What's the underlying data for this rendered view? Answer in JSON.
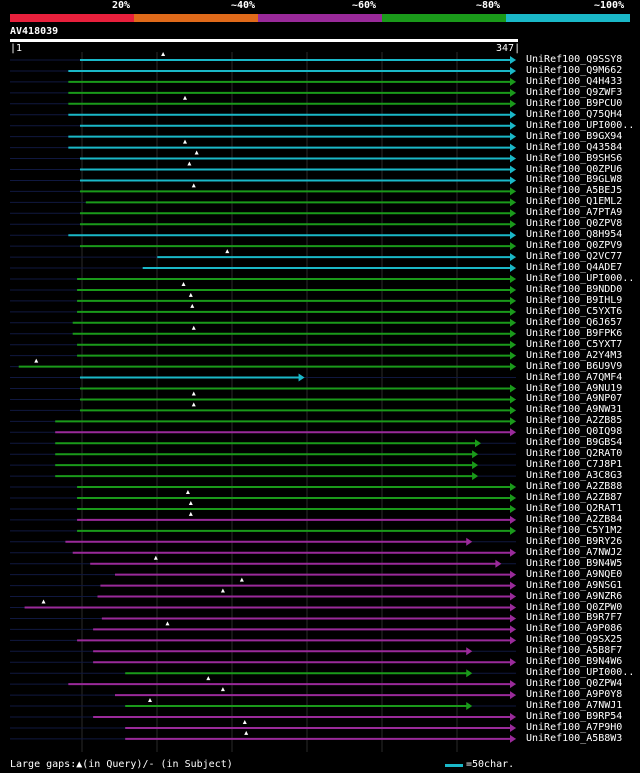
{
  "legend": {
    "labels": [
      "20%",
      "~40%",
      "~60%",
      "~80%",
      "~100%"
    ],
    "colors": [
      "#e8203c",
      "#e06a1a",
      "#9a2a9a",
      "#1a9a1a",
      "#1ab8c8"
    ]
  },
  "query": {
    "id": "AV418039",
    "start": "1",
    "end": "347",
    "length": 347
  },
  "hits": [
    {
      "name": "UniRef100_Q9SSY8",
      "start": 48,
      "end": 347,
      "color": "cyan",
      "gap": 105,
      "trunc": false
    },
    {
      "name": "UniRef100_Q9M662",
      "start": 40,
      "end": 347,
      "color": "cyan",
      "gap": 0,
      "trunc": false
    },
    {
      "name": "UniRef100_Q4H433",
      "start": 40,
      "end": 347,
      "color": "green",
      "gap": 0,
      "trunc": false
    },
    {
      "name": "UniRef100_Q9ZWF3",
      "start": 40,
      "end": 347,
      "color": "green",
      "gap": 0,
      "trunc": false
    },
    {
      "name": "UniRef100_B9PCU0",
      "start": 40,
      "end": 347,
      "color": "green",
      "gap": 120,
      "trunc": false
    },
    {
      "name": "UniRef100_Q75QH4",
      "start": 40,
      "end": 347,
      "color": "cyan",
      "gap": 0,
      "trunc": false
    },
    {
      "name": "UniRef100_UPI000..",
      "start": 48,
      "end": 347,
      "color": "cyan",
      "gap": 0,
      "trunc": true
    },
    {
      "name": "UniRef100_B9GX94",
      "start": 40,
      "end": 347,
      "color": "cyan",
      "gap": 0,
      "trunc": false
    },
    {
      "name": "UniRef100_Q43584",
      "start": 40,
      "end": 347,
      "color": "cyan",
      "gap": 120,
      "trunc": false
    },
    {
      "name": "UniRef100_B9SHS6",
      "start": 48,
      "end": 347,
      "color": "cyan",
      "gap": 128,
      "trunc": false
    },
    {
      "name": "UniRef100_Q0ZPU6",
      "start": 48,
      "end": 347,
      "color": "cyan",
      "gap": 123,
      "trunc": false
    },
    {
      "name": "UniRef100_B9GLW8",
      "start": 48,
      "end": 347,
      "color": "cyan",
      "gap": 0,
      "trunc": false
    },
    {
      "name": "UniRef100_A5BEJ5",
      "start": 48,
      "end": 347,
      "color": "green",
      "gap": 126,
      "trunc": false
    },
    {
      "name": "UniRef100_Q1EML2",
      "start": 52,
      "end": 347,
      "color": "green",
      "gap": 0,
      "trunc": false
    },
    {
      "name": "UniRef100_A7PTA9",
      "start": 48,
      "end": 347,
      "color": "green",
      "gap": 0,
      "trunc": false
    },
    {
      "name": "UniRef100_Q0ZPV8",
      "start": 48,
      "end": 347,
      "color": "green",
      "gap": 0,
      "trunc": false
    },
    {
      "name": "UniRef100_Q8H954",
      "start": 40,
      "end": 347,
      "color": "cyan",
      "gap": 0,
      "trunc": false
    },
    {
      "name": "UniRef100_Q0ZPV9",
      "start": 48,
      "end": 347,
      "color": "green",
      "gap": 0,
      "trunc": false
    },
    {
      "name": "UniRef100_Q2VC77",
      "start": 101,
      "end": 347,
      "color": "cyan",
      "gap": 149,
      "trunc": false
    },
    {
      "name": "UniRef100_Q4ADE7",
      "start": 91,
      "end": 347,
      "color": "cyan",
      "gap": 0,
      "trunc": false
    },
    {
      "name": "UniRef100_UPI000..",
      "start": 46,
      "end": 347,
      "color": "green",
      "gap": 0,
      "trunc": true
    },
    {
      "name": "UniRef100_B9NDD0",
      "start": 46,
      "end": 347,
      "color": "green",
      "gap": 119,
      "trunc": false
    },
    {
      "name": "UniRef100_B9IHL9",
      "start": 46,
      "end": 347,
      "color": "green",
      "gap": 124,
      "trunc": false
    },
    {
      "name": "UniRef100_C5YXT6",
      "start": 46,
      "end": 347,
      "color": "green",
      "gap": 125,
      "trunc": false
    },
    {
      "name": "UniRef100_Q6J657",
      "start": 43,
      "end": 347,
      "color": "green",
      "gap": 0,
      "trunc": false
    },
    {
      "name": "UniRef100_B9FPK6",
      "start": 43,
      "end": 347,
      "color": "green",
      "gap": 126,
      "trunc": false
    },
    {
      "name": "UniRef100_C5YXT7",
      "start": 46,
      "end": 347,
      "color": "green",
      "gap": 0,
      "trunc": false
    },
    {
      "name": "UniRef100_A2Y4M3",
      "start": 46,
      "end": 347,
      "color": "green",
      "gap": 0,
      "trunc": false
    },
    {
      "name": "UniRef100_B6U9V9",
      "start": 6,
      "end": 347,
      "color": "green",
      "gap": 18,
      "trunc": false
    },
    {
      "name": "UniRef100_A7QMF4",
      "start": 48,
      "end": 202,
      "color": "cyan",
      "gap": 0,
      "trunc": false
    },
    {
      "name": "UniRef100_A9NU19",
      "start": 48,
      "end": 347,
      "color": "green",
      "gap": 0,
      "trunc": false
    },
    {
      "name": "UniRef100_A9NP07",
      "start": 48,
      "end": 347,
      "color": "green",
      "gap": 126,
      "trunc": false
    },
    {
      "name": "UniRef100_A9NW31",
      "start": 48,
      "end": 347,
      "color": "green",
      "gap": 126,
      "trunc": false
    },
    {
      "name": "UniRef100_A2ZB85",
      "start": 31,
      "end": 347,
      "color": "green",
      "gap": 0,
      "trunc": false
    },
    {
      "name": "UniRef100_Q0IQ98",
      "start": 31,
      "end": 347,
      "color": "purple",
      "gap": 0,
      "trunc": false
    },
    {
      "name": "UniRef100_B9GBS4",
      "start": 31,
      "end": 323,
      "color": "green",
      "gap": 0,
      "trunc": false
    },
    {
      "name": "UniRef100_Q2RAT0",
      "start": 31,
      "end": 321,
      "color": "green",
      "gap": 0,
      "trunc": false
    },
    {
      "name": "UniRef100_C7J8P1",
      "start": 31,
      "end": 321,
      "color": "green",
      "gap": 0,
      "trunc": false
    },
    {
      "name": "UniRef100_A3C8G3",
      "start": 31,
      "end": 321,
      "color": "green",
      "gap": 0,
      "trunc": false
    },
    {
      "name": "UniRef100_A2ZB88",
      "start": 46,
      "end": 347,
      "color": "green",
      "gap": 0,
      "trunc": false
    },
    {
      "name": "UniRef100_A2ZB87",
      "start": 46,
      "end": 347,
      "color": "green",
      "gap": 122,
      "trunc": false
    },
    {
      "name": "UniRef100_Q2RAT1",
      "start": 46,
      "end": 347,
      "color": "green",
      "gap": 124,
      "trunc": false
    },
    {
      "name": "UniRef100_A2ZB84",
      "start": 46,
      "end": 347,
      "color": "purple",
      "gap": 124,
      "trunc": false
    },
    {
      "name": "UniRef100_C5Y1M2",
      "start": 46,
      "end": 347,
      "color": "green",
      "gap": 0,
      "trunc": false
    },
    {
      "name": "UniRef100_B9RY26",
      "start": 38,
      "end": 317,
      "color": "purple",
      "gap": 0,
      "trunc": false
    },
    {
      "name": "UniRef100_A7NWJ2",
      "start": 43,
      "end": 347,
      "color": "purple",
      "gap": 0,
      "trunc": false
    },
    {
      "name": "UniRef100_B9N4W5",
      "start": 55,
      "end": 337,
      "color": "purple",
      "gap": 100,
      "trunc": false
    },
    {
      "name": "UniRef100_A9NQE0",
      "start": 72,
      "end": 347,
      "color": "purple",
      "gap": 0,
      "trunc": false
    },
    {
      "name": "UniRef100_A9NSG1",
      "start": 62,
      "end": 347,
      "color": "purple",
      "gap": 159,
      "trunc": false
    },
    {
      "name": "UniRef100_A9NZR6",
      "start": 60,
      "end": 347,
      "color": "purple",
      "gap": 146,
      "trunc": false
    },
    {
      "name": "UniRef100_Q0ZPW0",
      "start": 10,
      "end": 347,
      "color": "purple",
      "gap": 23,
      "trunc": false
    },
    {
      "name": "UniRef100_B9R7F7",
      "start": 63,
      "end": 347,
      "color": "purple",
      "gap": 0,
      "trunc": false
    },
    {
      "name": "UniRef100_A9P086",
      "start": 57,
      "end": 347,
      "color": "purple",
      "gap": 108,
      "trunc": false
    },
    {
      "name": "UniRef100_Q9SX25",
      "start": 46,
      "end": 347,
      "color": "purple",
      "gap": 0,
      "trunc": false
    },
    {
      "name": "UniRef100_A5B8F7",
      "start": 57,
      "end": 317,
      "color": "purple",
      "gap": 0,
      "trunc": false
    },
    {
      "name": "UniRef100_B9N4W6",
      "start": 57,
      "end": 347,
      "color": "purple",
      "gap": 0,
      "trunc": false
    },
    {
      "name": "UniRef100_UPI000..",
      "start": 79,
      "end": 317,
      "color": "green",
      "gap": 0,
      "trunc": true
    },
    {
      "name": "UniRef100_Q0ZPW4",
      "start": 40,
      "end": 347,
      "color": "purple",
      "gap": 136,
      "trunc": false
    },
    {
      "name": "UniRef100_A9P0Y8",
      "start": 72,
      "end": 347,
      "color": "purple",
      "gap": 146,
      "trunc": false
    },
    {
      "name": "UniRef100_A7NWJ1",
      "start": 79,
      "end": 317,
      "color": "green",
      "gap": 96,
      "trunc": false
    },
    {
      "name": "UniRef100_B9RP54",
      "start": 57,
      "end": 347,
      "color": "purple",
      "gap": 0,
      "trunc": false
    },
    {
      "name": "UniRef100_A7P9H0",
      "start": 79,
      "end": 347,
      "color": "purple",
      "gap": 161,
      "trunc": false
    },
    {
      "name": "UniRef100_A5B8W3",
      "start": 79,
      "end": 347,
      "color": "purple",
      "gap": 162,
      "trunc": false
    }
  ],
  "footer": {
    "left": "Large gaps:▲(in Query)/- (in Subject)",
    "scale": "=50char."
  }
}
